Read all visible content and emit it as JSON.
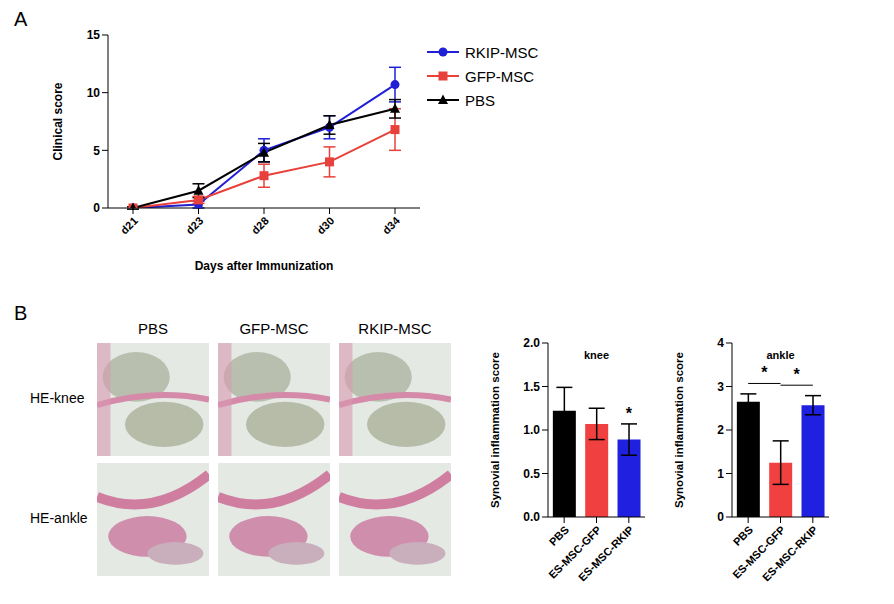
{
  "panel_labels": [
    "A",
    "B"
  ],
  "histology": {
    "column_labels": [
      "PBS",
      "GFP-MSC",
      "RKIP-MSC"
    ],
    "row_labels": [
      "HE-knee",
      "HE-ankle"
    ]
  },
  "chart_data": [
    {
      "type": "line",
      "x_label": "Days after Immunization",
      "y_label": "Clinical score",
      "categories": [
        "d21",
        "d23",
        "d28",
        "d30",
        "d34"
      ],
      "ylim": [
        0,
        15
      ],
      "yticks": [
        0,
        5,
        10,
        15
      ],
      "legend": "right",
      "series": [
        {
          "name": "RKIP-MSC",
          "color": "#1f1fd6",
          "marker": "circle",
          "values": [
            0,
            0.3,
            5.0,
            7.0,
            10.7
          ],
          "errors": [
            0,
            0.3,
            1.0,
            1.0,
            1.5
          ]
        },
        {
          "name": "GFP-MSC",
          "color": "#e8403a",
          "marker": "square",
          "values": [
            0,
            0.7,
            2.8,
            4.0,
            6.8
          ],
          "errors": [
            0,
            0.3,
            1.0,
            1.3,
            1.8
          ]
        },
        {
          "name": "PBS",
          "color": "#000000",
          "marker": "triangle",
          "values": [
            0,
            1.5,
            4.8,
            7.2,
            8.6
          ],
          "errors": [
            0.1,
            0.6,
            0.8,
            0.8,
            0.8
          ]
        }
      ]
    },
    {
      "type": "bar",
      "title": "knee",
      "y_label": "Synovial inflammation score",
      "categories": [
        "PBS",
        "ES-MSC-GFP",
        "ES-MSC-RKIP"
      ],
      "values": [
        1.22,
        1.07,
        0.89
      ],
      "errors": [
        0.27,
        0.18,
        0.18
      ],
      "colors": [
        "#000000",
        "#f04040",
        "#2020e0"
      ],
      "ylim": [
        0,
        2.0
      ],
      "yticks": [
        {
          "value": 0,
          "label": "0.0"
        },
        {
          "value": 0.5,
          "label": "0.5"
        },
        {
          "value": 1,
          "label": "1.0"
        },
        {
          "value": 1.5,
          "label": "1.5"
        },
        {
          "value": 2,
          "label": "2.0"
        }
      ],
      "significance": [
        {
          "at": "ES-MSC-RKIP",
          "label": "*"
        }
      ]
    },
    {
      "type": "bar",
      "title": "ankle",
      "y_label": "Synovial inflammation score",
      "categories": [
        "PBS",
        "ES-MSC-GFP",
        "ES-MSC-RKIP"
      ],
      "values": [
        2.65,
        1.25,
        2.57
      ],
      "errors": [
        0.18,
        0.5,
        0.22
      ],
      "colors": [
        "#000000",
        "#f04040",
        "#2020e0"
      ],
      "ylim": [
        0,
        4
      ],
      "yticks": [
        0,
        1,
        2,
        3,
        4
      ],
      "significance": [
        {
          "from": "PBS",
          "to": "ES-MSC-GFP",
          "label": "*"
        },
        {
          "from": "ES-MSC-GFP",
          "to": "ES-MSC-RKIP",
          "label": "*"
        }
      ]
    }
  ]
}
